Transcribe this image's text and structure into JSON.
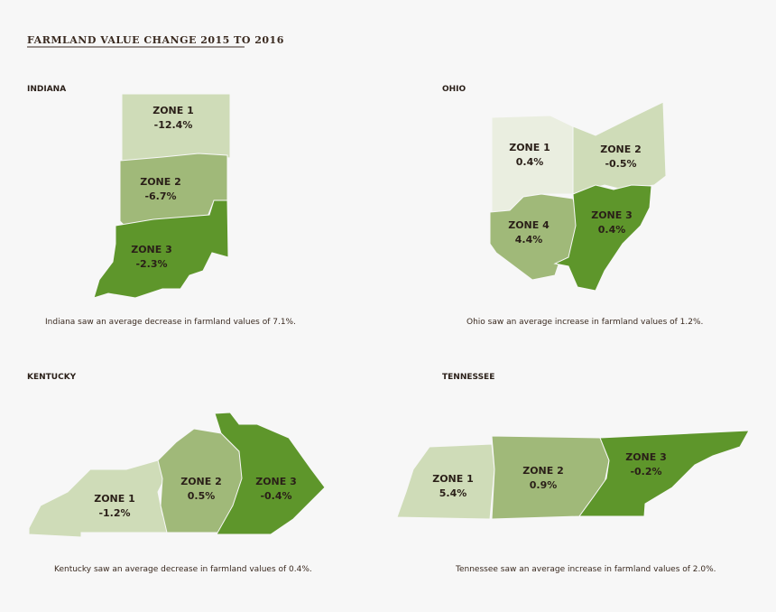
{
  "title": "FARMLAND VALUE CHANGE 2015 TO 2016",
  "states": [
    {
      "name": "INDIANA",
      "caption": "Indiana saw an average decrease in farmland values of 7.1%.",
      "zones": [
        {
          "name": "ZONE 1",
          "change": "-12.4%"
        },
        {
          "name": "ZONE 2",
          "change": "-6.7%"
        },
        {
          "name": "ZONE 3",
          "change": "-2.3%"
        }
      ]
    },
    {
      "name": "OHIO",
      "caption": "Ohio saw an average increase in farmland values of 1.2%.",
      "zones": [
        {
          "name": "ZONE 1",
          "change": "0.4%"
        },
        {
          "name": "ZONE 2",
          "change": "-0.5%"
        },
        {
          "name": "ZONE 3",
          "change": "0.4%"
        },
        {
          "name": "ZONE 4",
          "change": "4.4%"
        }
      ]
    },
    {
      "name": "KENTUCKY",
      "caption": "Kentucky saw an average decrease in farmland values of 0.4%.",
      "zones": [
        {
          "name": "ZONE 1",
          "change": "-1.2%"
        },
        {
          "name": "ZONE 2",
          "change": "0.5%"
        },
        {
          "name": "ZONE 3",
          "change": "-0.4%"
        }
      ]
    },
    {
      "name": "TENNESSEE",
      "caption": "Tennessee saw an average increase in farmland values of 2.0%.",
      "zones": [
        {
          "name": "ZONE 1",
          "change": "5.4%"
        },
        {
          "name": "ZONE 2",
          "change": "0.9%"
        },
        {
          "name": "ZONE 3",
          "change": "-0.2%"
        }
      ]
    }
  ]
}
